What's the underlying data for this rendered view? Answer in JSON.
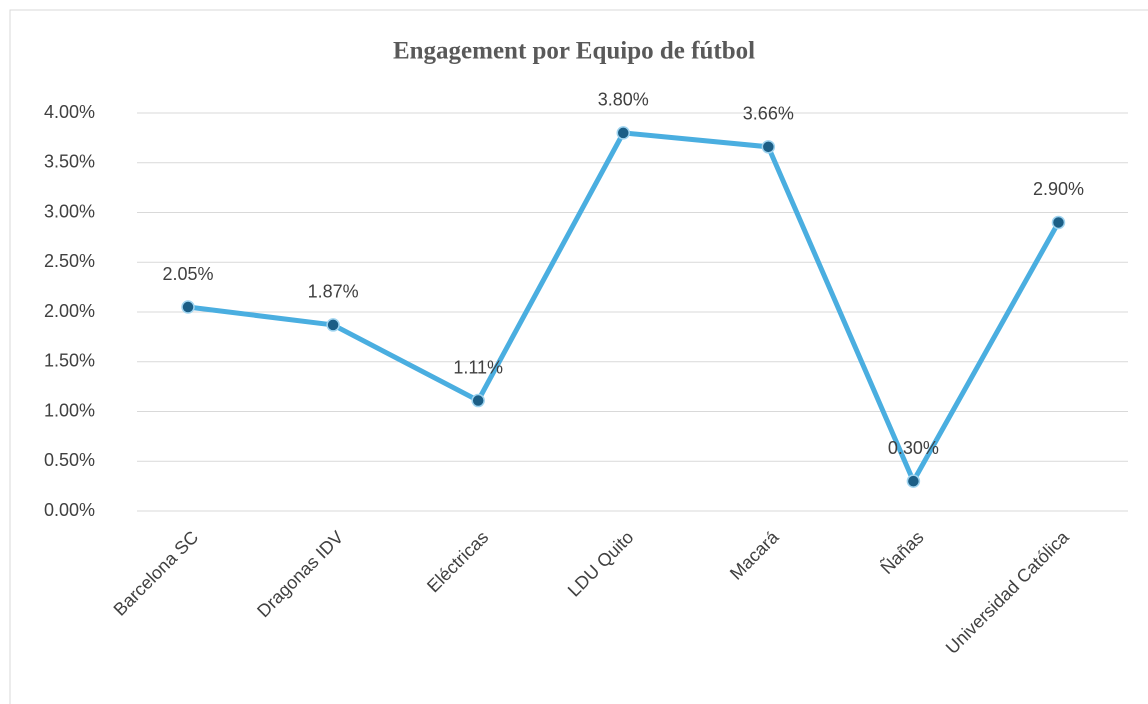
{
  "chart_data": {
    "type": "line",
    "title": "Engagement por Equipo de fútbol",
    "categories": [
      "Barcelona SC",
      "Dragonas IDV",
      "Eléctricas",
      "LDU Quito",
      "Macará",
      "Ñañas",
      "Universidad Católica"
    ],
    "series": [
      {
        "name": "Engagement",
        "color": "#4aaee0",
        "values": [
          2.05,
          1.87,
          1.11,
          3.8,
          3.66,
          0.3,
          2.9
        ],
        "value_labels": [
          "2.05%",
          "1.87%",
          "1.11%",
          "3.80%",
          "3.66%",
          "0.30%",
          "2.90%"
        ]
      }
    ],
    "ylim": [
      0,
      4
    ],
    "yticks": [
      {
        "value": 0,
        "label": "0.00%"
      },
      {
        "value": 0.5,
        "label": "0.50%"
      },
      {
        "value": 1,
        "label": "1.00%"
      },
      {
        "value": 1.5,
        "label": "1.50%"
      },
      {
        "value": 2,
        "label": "2.00%"
      },
      {
        "value": 2.5,
        "label": "2.50%"
      },
      {
        "value": 3,
        "label": "3.00%"
      },
      {
        "value": 3.5,
        "label": "3.50%"
      },
      {
        "value": 4,
        "label": "4.00%"
      }
    ],
    "grid": true
  }
}
